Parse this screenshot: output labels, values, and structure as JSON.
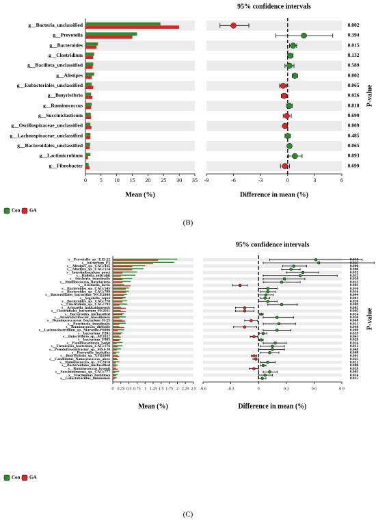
{
  "chart_data": [
    {
      "type": "bar",
      "orientation": "horizontal",
      "panel": "(B)",
      "xlabel": "Mean (%)",
      "categories": [
        "g__Bacteria_unclassified",
        "g__Prevotella",
        "g__Bacteroides",
        "g__Clostridium",
        "g__Bacillota_unclassified",
        "g__Alistipes",
        "g__Eubacteriales_unclassified",
        "g__Butyrivibrio",
        "g__Ruminococcus",
        "g__Succiniclasticum",
        "g__Oscillospiraceae_unclassified",
        "g__Lachnospiraceae_unclassified",
        "g__Bacteroidales_unclassified",
        "g__Lactimicrobium",
        "g__Fibrobacter"
      ],
      "series": [
        {
          "name": "Con",
          "color": "#2e8b2e",
          "values": [
            24,
            16.5,
            4,
            2.8,
            2.5,
            2.8,
            2,
            1.8,
            2,
            1.7,
            1.6,
            1.6,
            1.5,
            1.6,
            1
          ]
        },
        {
          "name": "GA",
          "color": "#d62728",
          "values": [
            30,
            15,
            3.5,
            2.5,
            2.3,
            2,
            2.5,
            2.2,
            1.8,
            1.8,
            1.9,
            1.6,
            1.3,
            0.8,
            1.3
          ]
        }
      ],
      "xlim": [
        0,
        35
      ],
      "xticks": [
        0,
        5,
        10,
        15,
        20,
        25,
        30,
        35
      ]
    },
    {
      "type": "forest",
      "title": "95% confidence intervals",
      "xlabel": "Difference in mean (%)",
      "p_value_title": "P-value",
      "values": [
        -6,
        1.8,
        0.6,
        0.3,
        0.2,
        0.8,
        -0.5,
        -0.4,
        0.2,
        -0.1,
        -0.3,
        0,
        0.2,
        0.8,
        -0.3
      ],
      "ci_low": [
        -7.5,
        -1.3,
        0.2,
        0,
        -0.3,
        0.5,
        -0.9,
        -0.7,
        -0.1,
        -0.5,
        -0.5,
        -0.3,
        0.1,
        0.1,
        -0.8
      ],
      "ci_high": [
        -4.3,
        5,
        1,
        0.6,
        0.7,
        1.1,
        -0.1,
        -0.1,
        0.5,
        0.4,
        -0.1,
        0.3,
        0.4,
        1.6,
        0.2
      ],
      "p_values": [
        "0.002",
        "0.394",
        "0.015",
        "0.132",
        "0.589",
        "0.002",
        "0.065",
        "0.026",
        "0.818",
        "0.699",
        "0.009",
        "0.485",
        "0.065",
        "0.093",
        "0.699"
      ],
      "xlim": [
        -9,
        6
      ],
      "xticks": [
        -9,
        -6,
        -3,
        0,
        3,
        6
      ]
    },
    {
      "type": "bar",
      "orientation": "horizontal",
      "panel": "(C)",
      "xlabel": "Mean (%)",
      "categories": [
        "s__Prevotella_sp._E15-22",
        "s__bacterium_P3",
        "s__Alistipes_sp._CAG:435",
        "s__Alistipes_sp._CAG:514",
        "s__Intestinibaculum_porci",
        "s__Hallella_mizrahii",
        "s__Stecheria_intestinalis",
        "s__Ruminococcus_flavefaciens",
        "s__Aristaella_lactis",
        "s__Bacteroides_sp._CAG:545",
        "s__Bacteroides_sp._CAG:709",
        "s__Bacteroidales_bacterium_WCE2008",
        "s__Segatella_copri",
        "s__Bacteroides_sp._CAG:770",
        "s__Clostridium_sp._CAG:793",
        "s__Aristaella_hokkaidonensis",
        "s__Clostridiales_bacterium_FE2011",
        "s__Bacteroides_unclassified",
        "s__Anaerolactibacter_massiliensis",
        "s__Ruminococcaceae_bacterium_R-25",
        "s__Porcincola_intestinalis",
        "s__Ruminococcus_difficilis",
        "s__Lachnoclostridium_sp._Marseille-P6806",
        "s__bacterium_P201",
        "s__Butyrivibrio_sp._AE2032",
        "s__bacterium_F083",
        "s__Pseudoscardovia_radai",
        "s__Firmicutes_bacterium_CAG:176",
        "s__Pseudoflavonifractor_sp._MSJ-30",
        "s__Prevotella_lacticifex",
        "s__Butyrivibrio_sp._XPD2006",
        "s__Candidatus_Nanosyncoccus_alces",
        "s__Ruminococcus_sp._FC2018",
        "s__Bacteroidales_unclassified",
        "s__Ruminococcus_bromii",
        "s__Succinatimonas_sp._CAG:777",
        "s__Vescimonas_fastidiosa",
        "s__Galactobacillus_timonensis"
      ],
      "series": [
        {
          "name": "Con",
          "color": "#2e8b2e",
          "values": [
            2,
            1.9,
            1,
            0.95,
            0.75,
            0.7,
            0.6,
            0.55,
            0.35,
            0.5,
            0.5,
            0.45,
            0.4,
            0.45,
            0.45,
            0.25,
            0.25,
            0.35,
            0.4,
            0.3,
            0.4,
            0.2,
            0.35,
            0.3,
            0.2,
            0.25,
            0.3,
            0.3,
            0.25,
            0.2,
            0.15,
            0.12,
            0.2,
            0.15,
            0.1,
            0.2,
            0.15,
            0.12
          ]
        },
        {
          "name": "GA",
          "color": "#d62728",
          "values": [
            1.4,
            1.25,
            0.6,
            0.6,
            0.3,
            0.25,
            0.3,
            0.3,
            0.55,
            0.4,
            0.4,
            0.35,
            0.3,
            0.3,
            0.2,
            0.4,
            0.4,
            0.3,
            0.2,
            0.38,
            0.2,
            0.35,
            0.15,
            0.25,
            0.25,
            0.2,
            0.12,
            0.15,
            0.12,
            0.1,
            0.2,
            0.16,
            0.1,
            0.1,
            0.15,
            0.08,
            0.1,
            0.06
          ]
        }
      ],
      "xlim": [
        0,
        2.5
      ],
      "xticks": [
        0,
        0.25,
        0.5,
        0.75,
        1,
        1.25,
        1.5,
        1.75,
        2,
        2.25,
        2.5
      ]
    },
    {
      "type": "forest",
      "title": "95% confidence intervals",
      "xlabel": "Difference in mean (%)",
      "p_value_title": "P-value",
      "values": [
        0.62,
        0.65,
        0.38,
        0.35,
        0.48,
        0.45,
        0.28,
        0.25,
        -0.2,
        0.1,
        0.1,
        0.08,
        0.07,
        0.1,
        0.25,
        -0.15,
        -0.15,
        0.03,
        0.2,
        -0.08,
        0.22,
        -0.15,
        0.2,
        0.05,
        -0.05,
        0.03,
        0.18,
        0.15,
        0.15,
        0.12,
        -0.05,
        -0.03,
        0.1,
        0.05,
        -0.05,
        0.12,
        0.07,
        0.04
      ],
      "ci_low": [
        0.12,
        0.05,
        0.26,
        0.25,
        0.3,
        0.05,
        0.05,
        0.05,
        -0.28,
        0,
        0.02,
        0,
        0.02,
        0,
        0.1,
        -0.25,
        -0.25,
        0.01,
        0.05,
        -0.15,
        0.05,
        -0.27,
        0.05,
        0.01,
        -0.09,
        0.01,
        0.05,
        0.02,
        0,
        0.02,
        -0.08,
        -0.06,
        0.02,
        0.02,
        -0.1,
        0.05,
        0,
        0
      ],
      "ci_high": [
        1.12,
        1.25,
        0.52,
        0.45,
        0.65,
        0.85,
        0.5,
        0.45,
        -0.12,
        0.2,
        0.18,
        0.16,
        0.12,
        0.2,
        0.42,
        -0.05,
        -0.05,
        0.05,
        0.38,
        -0.01,
        0.4,
        -0.02,
        0.35,
        0.09,
        -0.01,
        0.05,
        0.3,
        0.28,
        0.28,
        0.22,
        -0.02,
        0,
        0.18,
        0.08,
        0,
        0.2,
        0.15,
        0.08
      ],
      "p_values": [
        "0.019",
        "0.025",
        "0.000",
        "0.000",
        "0.032",
        "0.032",
        "0.050",
        "0.023",
        "0.003",
        "0.016",
        "0.016",
        "0.044",
        "0.001",
        "0.020",
        "0.009",
        "0.005",
        "0.005",
        "0.014",
        "0.030",
        "0.048",
        "0.013",
        "0.048",
        "0.008",
        "0.019",
        "0.041",
        "0.029",
        "0.024",
        "0.012",
        "0.048",
        "0.008",
        "0.001",
        "0.025",
        "0.021",
        "0.000",
        "0.039",
        "0.003",
        "0.014",
        "0.015"
      ],
      "xlim": [
        -0.6,
        0.9
      ],
      "xticks": [
        -0.6,
        -0.3,
        0,
        0.3,
        0.6,
        0.9
      ]
    }
  ]
}
